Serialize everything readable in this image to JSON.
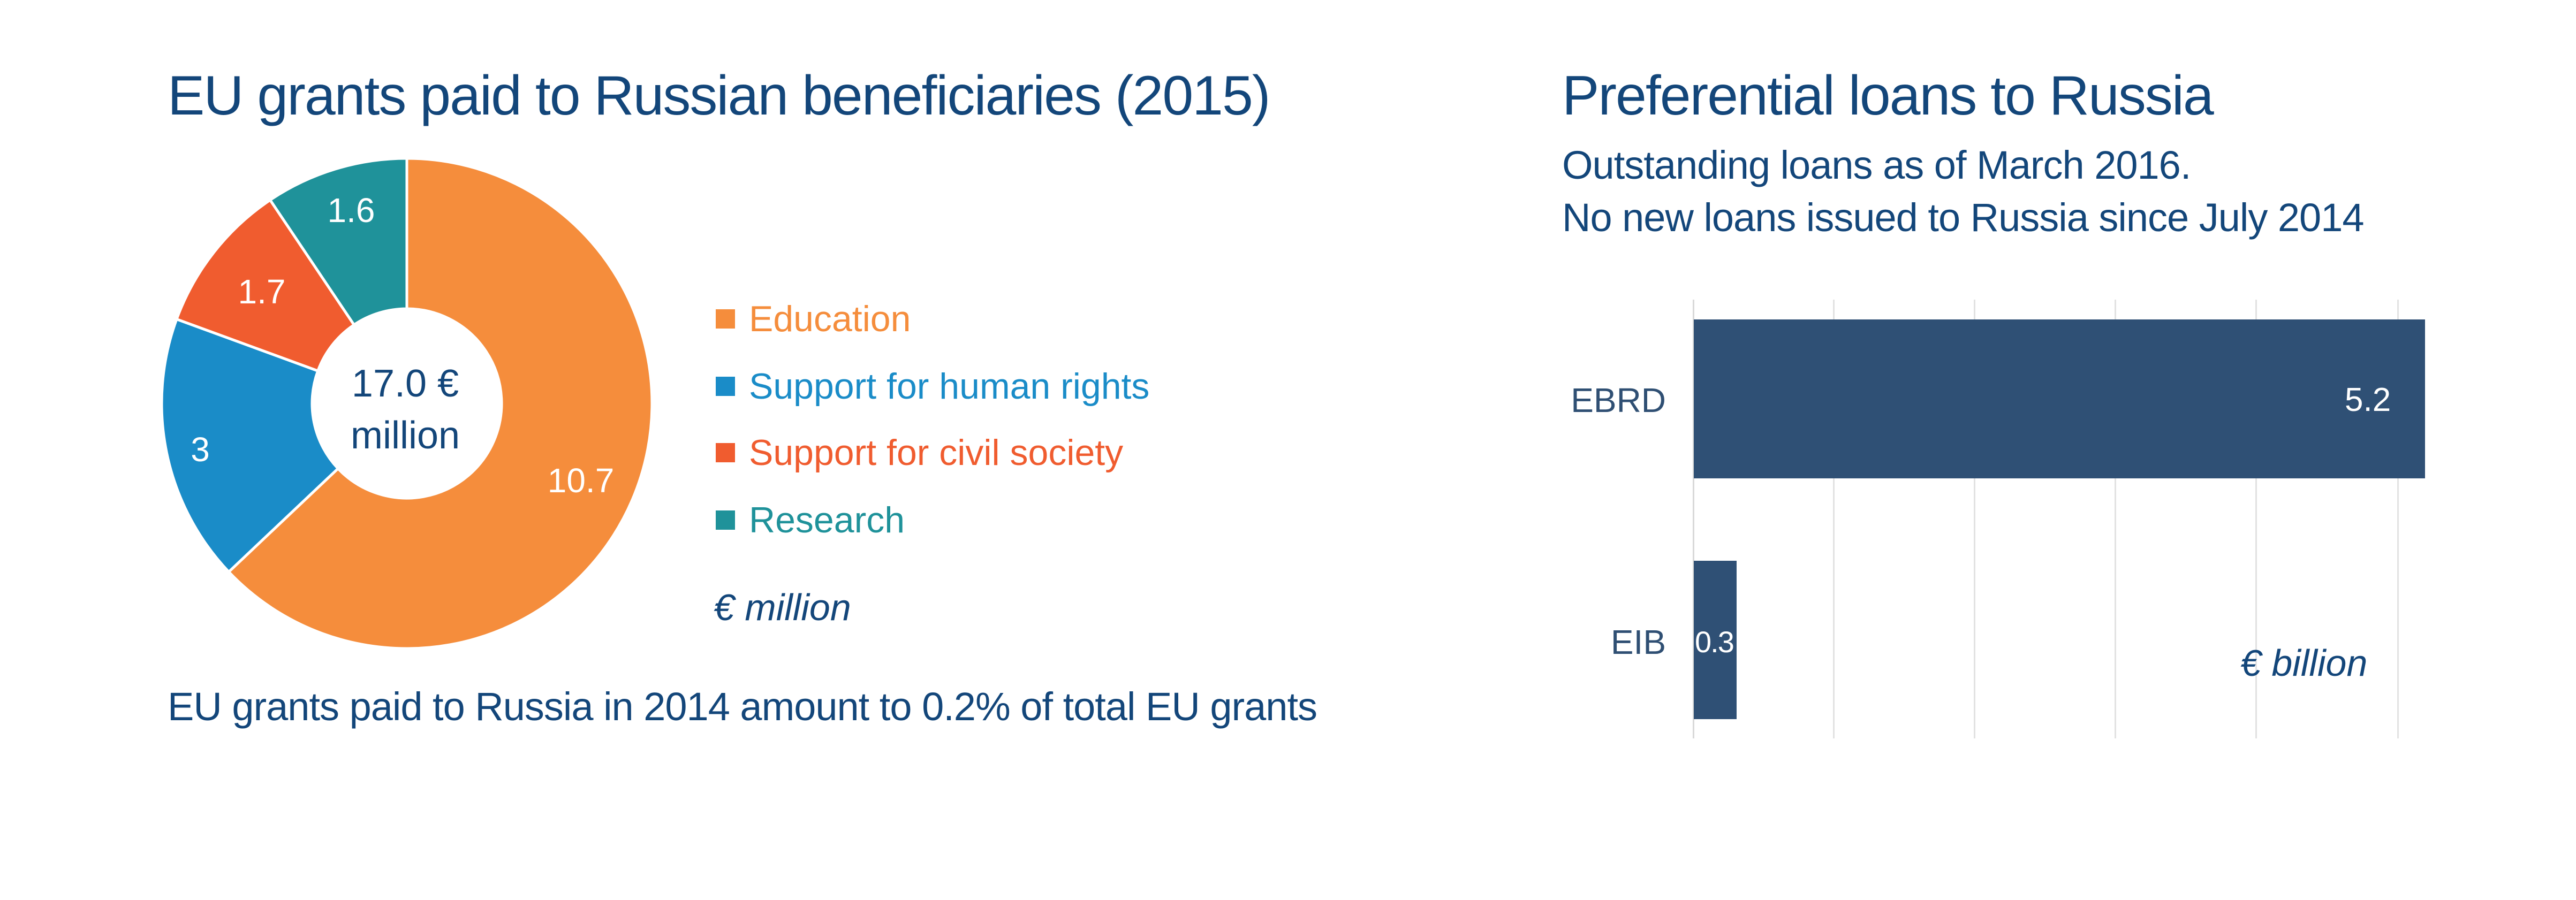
{
  "left_panel": {
    "title": "EU grants paid to Russian beneficiaries (2015)",
    "center_label_line1": "17.0 €",
    "center_label_line2": "million",
    "unit_label": "€ million",
    "footnote": "EU grants paid to Russia in 2014 amount to 0.2% of total EU grants",
    "legend": [
      {
        "label": "Education",
        "color": "#f58d3c"
      },
      {
        "label": "Support for human rights",
        "color": "#1a8cc8"
      },
      {
        "label": "Support for civil society",
        "color": "#f05c2f"
      },
      {
        "label": "Research",
        "color": "#1f929a"
      }
    ],
    "slice_labels": [
      "10.7",
      "3",
      "1.7",
      "1.6"
    ]
  },
  "right_panel": {
    "title": "Preferential loans to Russia",
    "subtitle_line1": "Outstanding loans as of March 2016.",
    "subtitle_line2": "No new loans issued to Russia since July 2014",
    "unit_label": "€ billion",
    "categories": [
      "EBRD",
      "EIB"
    ],
    "value_labels": [
      "5.2",
      "0.3"
    ],
    "bar_color": "#2f5075"
  },
  "colors": {
    "text_primary": "#13467a",
    "gridline": "#e2e2e2",
    "background": "#ffffff"
  },
  "chart_data": [
    {
      "type": "pie",
      "variant": "donut",
      "title": "EU grants paid to Russian beneficiaries (2015)",
      "categories": [
        "Education",
        "Support for human rights",
        "Support for civil society",
        "Research"
      ],
      "values": [
        10.7,
        3,
        1.7,
        1.6
      ],
      "colors": [
        "#f58d3c",
        "#1a8cc8",
        "#f05c2f",
        "#1f929a"
      ],
      "total": 17.0,
      "center_text": "17.0 € million",
      "unit": "€ million",
      "legend_position": "right",
      "annotation": "EU grants paid to Russia in 2014 amount to 0.2% of total EU grants"
    },
    {
      "type": "bar",
      "orientation": "horizontal",
      "title": "Preferential loans to Russia",
      "subtitle": "Outstanding loans as of March 2016. No new loans issued to Russia since July 2014",
      "categories": [
        "EBRD",
        "EIB"
      ],
      "values": [
        5.2,
        0.3
      ],
      "unit": "€ billion",
      "xlabel": "",
      "ylabel": "",
      "xlim": [
        0,
        5
      ],
      "grid": true,
      "gridlines_x": [
        0,
        1,
        2,
        3,
        4,
        5
      ],
      "data_labels": true
    }
  ]
}
